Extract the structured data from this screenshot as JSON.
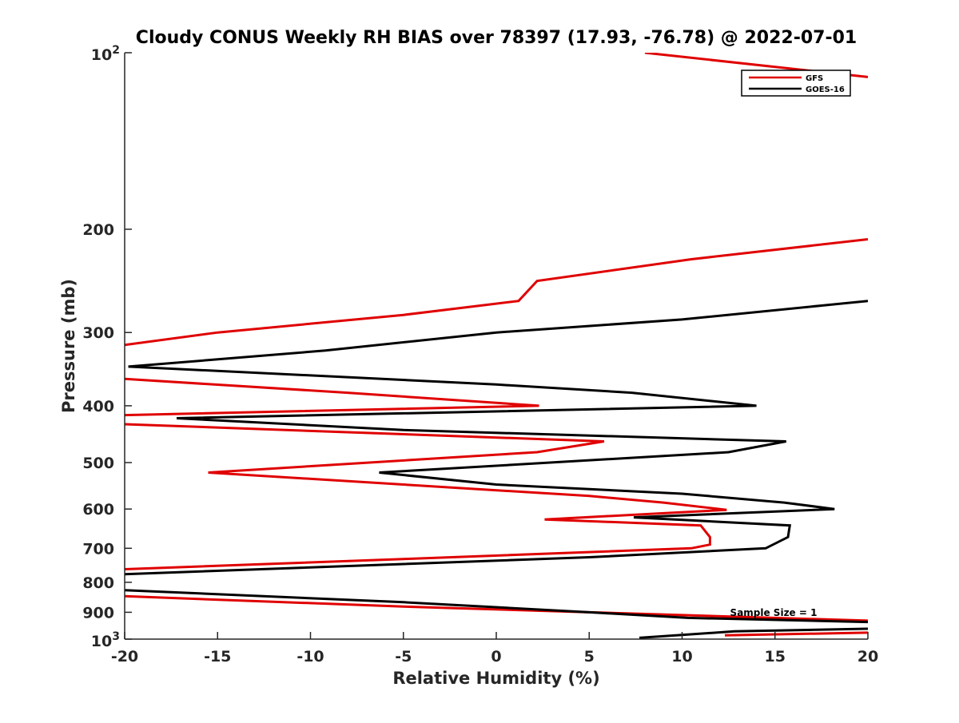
{
  "chart_data": {
    "type": "line",
    "title": "Cloudy CONUS Weekly RH BIAS over 78397 (17.93, -76.78) @ 2022-07-01",
    "xlabel": "Relative Humidity (%)",
    "ylabel": "Pressure (mb)",
    "xlim": [
      -20,
      20
    ],
    "ylim": [
      100,
      1000
    ],
    "y_scale": "log",
    "y_reversed": true,
    "grid": false,
    "legend_position": "top-right",
    "x_ticks": [
      "-20",
      "-15",
      "-10",
      "-5",
      "0",
      "5",
      "10",
      "15",
      "20"
    ],
    "y_ticks": [
      {
        "value": 100,
        "base": "10",
        "exp": "2",
        "label": ""
      },
      {
        "value": 200,
        "base": "",
        "exp": "",
        "label": "200"
      },
      {
        "value": 300,
        "base": "",
        "exp": "",
        "label": "300"
      },
      {
        "value": 400,
        "base": "",
        "exp": "",
        "label": "400"
      },
      {
        "value": 500,
        "base": "",
        "exp": "",
        "label": "500"
      },
      {
        "value": 600,
        "base": "",
        "exp": "",
        "label": "600"
      },
      {
        "value": 700,
        "base": "",
        "exp": "",
        "label": "700"
      },
      {
        "value": 800,
        "base": "",
        "exp": "",
        "label": "800"
      },
      {
        "value": 900,
        "base": "",
        "exp": "",
        "label": "900"
      },
      {
        "value": 1000,
        "base": "10",
        "exp": "3",
        "label": ""
      }
    ],
    "annotation": "Sample Size = 1",
    "series": [
      {
        "name": "GFS",
        "color": "#e00000",
        "segments": [
          [
            [
              8.0,
              100
            ],
            [
              20,
              110
            ]
          ],
          [
            [
              20,
              208
            ],
            [
              10.5,
              225
            ],
            [
              2.2,
              245
            ],
            [
              1.2,
              265
            ],
            [
              -5,
              280
            ],
            [
              -15,
              300
            ],
            [
              -20,
              315
            ]
          ],
          [
            [
              -20,
              360
            ],
            [
              -8,
              380
            ],
            [
              2.3,
              400
            ],
            [
              -20,
              415
            ]
          ],
          [
            [
              -20,
              430
            ],
            [
              5.8,
              460
            ],
            [
              2.2,
              480
            ],
            [
              -15.5,
              520
            ],
            [
              -5,
              545
            ],
            [
              5,
              570
            ],
            [
              9,
              585
            ],
            [
              12.4,
              602
            ],
            [
              2.6,
              625
            ],
            [
              11,
              640
            ],
            [
              11.5,
              670
            ],
            [
              11.5,
              690
            ],
            [
              10.5,
              700
            ],
            [
              -5,
              730
            ],
            [
              -20,
              760
            ]
          ],
          [
            [
              -20,
              845
            ],
            [
              -5,
              880
            ],
            [
              5,
              900
            ],
            [
              20,
              930
            ]
          ],
          [
            [
              20,
              975
            ],
            [
              12.3,
              985
            ]
          ]
        ]
      },
      {
        "name": "GOES-16",
        "color": "#000000",
        "segments": [
          [
            [
              20,
              265
            ],
            [
              10,
              285
            ],
            [
              0,
              300
            ],
            [
              -9.2,
              322
            ],
            [
              -19.8,
              343
            ],
            [
              -10,
              355
            ],
            [
              0,
              368
            ],
            [
              7.3,
              380
            ],
            [
              14,
              400
            ],
            [
              -17.2,
              420
            ],
            [
              -5,
              440
            ],
            [
              15.6,
              460
            ],
            [
              12.5,
              480
            ],
            [
              -6.3,
              520
            ],
            [
              0,
              545
            ],
            [
              10,
              565
            ],
            [
              15.5,
              585
            ],
            [
              18.2,
              600
            ],
            [
              7.4,
              620
            ],
            [
              15.8,
              640
            ],
            [
              15.7,
              670
            ],
            [
              14.5,
              700
            ],
            [
              5,
              725
            ],
            [
              -20,
              775
            ]
          ],
          [
            [
              -20,
              825
            ],
            [
              -5,
              865
            ],
            [
              5,
              900
            ],
            [
              10.3,
              920
            ],
            [
              20,
              935
            ]
          ],
          [
            [
              20,
              960
            ],
            [
              12.8,
              970
            ],
            [
              7.7,
              995
            ]
          ]
        ]
      }
    ]
  }
}
